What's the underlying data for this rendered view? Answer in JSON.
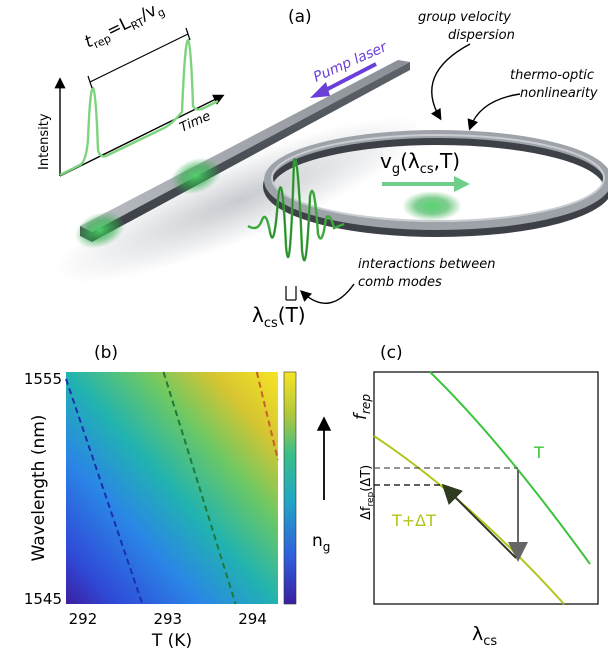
{
  "panel_a": {
    "label": "(a)",
    "t_rep_prefix": "t",
    "t_rep_sub": "rep",
    "t_rep_mid": "=L",
    "t_rep_sub2": "RT",
    "t_rep_slash": "/v",
    "t_rep_sub3": "g",
    "intensity_label": "Intensity",
    "time_label": "Time",
    "pump_laser": "Pump laser",
    "gvd_line1": "group velocity",
    "gvd_line2": "dispersion",
    "thermo_line1": "thermo-optic",
    "thermo_line2": "nonlinearity",
    "vg_main": "v",
    "vg_sub": "g",
    "vg_paren_open": "(λ",
    "vg_sub2": "cs",
    "vg_rest": ",T)",
    "interactions_line1": "interactions between",
    "interactions_line2": "comb modes",
    "lcs_main": "λ",
    "lcs_sub": "cs",
    "lcs_rest": "(T)"
  },
  "panel_b": {
    "label": "(b)",
    "ylabel": "Wavelength (nm)",
    "xlabel": "T (K)",
    "colorbar_label": "n",
    "colorbar_sub": "g",
    "colors": {
      "low": "#3b1fa0",
      "mid": "#21b3b0",
      "high": "#f7e425"
    }
  },
  "panel_c": {
    "label": "(c)",
    "ylabel_main": "f",
    "ylabel_sub": "rep",
    "delta_main": "Δf",
    "delta_sub": "rep",
    "delta_rest": "(ΔT)",
    "curve_T": "T",
    "curve_T_dT": "T+ΔT",
    "xlabel_main": "λ",
    "xlabel_sub": "cs",
    "colors": {
      "T": "#3cc43c",
      "T_dT": "#b3c41a"
    }
  },
  "chart_data": {
    "type": "heatmap",
    "xlabel": "T (K)",
    "ylabel": "Wavelength (nm)",
    "xlim": [
      291.8,
      294.3
    ],
    "ylim": [
      1545,
      1555
    ],
    "x_ticks": [
      292,
      293,
      294
    ],
    "y_ticks": [
      1545,
      1555
    ],
    "colorbar_label": "n_g",
    "contours": [
      {
        "color": "#1a2fb0",
        "points": [
          [
            291.8,
            1554.7
          ],
          [
            292.7,
            1545
          ]
        ]
      },
      {
        "color": "#1f7a3a",
        "points": [
          [
            292.95,
            1555
          ],
          [
            293.8,
            1545
          ]
        ]
      },
      {
        "color": "#c4622a",
        "points": [
          [
            294.05,
            1555
          ],
          [
            294.3,
            1551.2
          ]
        ]
      }
    ]
  }
}
